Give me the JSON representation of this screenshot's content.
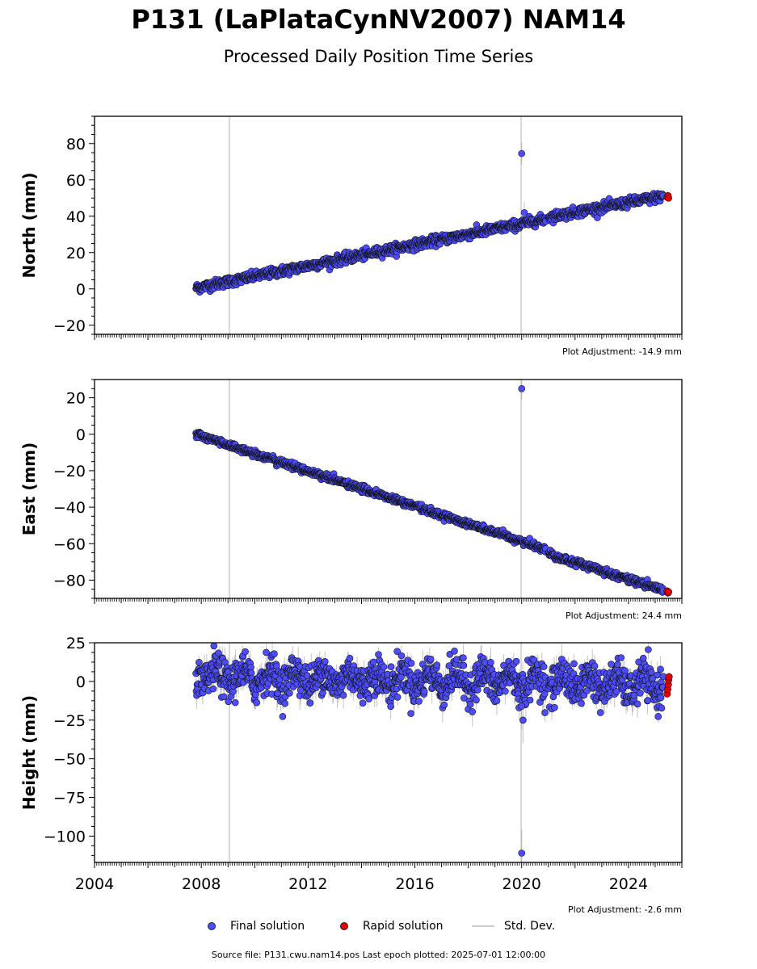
{
  "title": "P131 (LaPlataCynNV2007) NAM14",
  "subtitle": "Processed Daily Position Time Series",
  "footer": "Source file: P131.cwu.nam14.pos  Last epoch plotted: 2025-07-01 12:00:00",
  "legend": {
    "final": "Final solution",
    "rapid": "Rapid solution",
    "std": "Std. Dev."
  },
  "colors": {
    "final": "#4d4dff",
    "rapid": "#e00000",
    "std": "#cccccc",
    "edge": "#111111"
  },
  "chart_data": [
    {
      "type": "scatter",
      "ylabel": "North (mm)",
      "adjustment": "Plot Adjustment: -14.9 mm",
      "xlim": [
        2004,
        2026
      ],
      "ylim": [
        -25,
        95
      ],
      "yticks": [
        -20,
        0,
        20,
        40,
        60,
        80
      ],
      "xtick_labels_shown": false,
      "vlines": [
        2009.05,
        2019.98
      ],
      "series": [
        {
          "name": "Final solution",
          "segments": [
            {
              "x0": 2007.8,
              "x1": 2020.9,
              "y0": 0.5,
              "y1": 38.5
            },
            {
              "x0": 2021.0,
              "x1": 2025.3,
              "y0": 39.5,
              "y1": 51.0
            }
          ],
          "noise": 1.3,
          "outliers": [
            {
              "x": 2020.0,
              "y": 74.5
            },
            {
              "x": 2020.1,
              "y": 42.0
            }
          ]
        },
        {
          "name": "Rapid solution",
          "points": [
            {
              "x": 2025.45,
              "y": 50.5
            },
            {
              "x": 2025.48,
              "y": 51.3
            },
            {
              "x": 2025.5,
              "y": 50.0
            }
          ]
        }
      ]
    },
    {
      "type": "scatter",
      "ylabel": "East (mm)",
      "adjustment": "Plot Adjustment: 24.4 mm",
      "xlim": [
        2004,
        2026
      ],
      "ylim": [
        -90,
        30
      ],
      "yticks": [
        -80,
        -60,
        -40,
        -20,
        0,
        20
      ],
      "xtick_labels_shown": false,
      "vlines": [
        2009.05,
        2019.98
      ],
      "series": [
        {
          "name": "Final solution",
          "segments": [
            {
              "x0": 2007.8,
              "x1": 2020.9,
              "y0": 0.0,
              "y1": -63.0
            },
            {
              "x0": 2021.0,
              "x1": 2025.3,
              "y0": -65.5,
              "y1": -85.5
            }
          ],
          "noise": 0.9,
          "outliers": [
            {
              "x": 2020.0,
              "y": 25.0
            }
          ]
        },
        {
          "name": "Rapid solution",
          "points": [
            {
              "x": 2025.45,
              "y": -86.0
            },
            {
              "x": 2025.48,
              "y": -87.0
            },
            {
              "x": 2025.5,
              "y": -86.5
            }
          ]
        }
      ]
    },
    {
      "type": "scatter",
      "ylabel": "Height (mm)",
      "adjustment": "Plot Adjustment: -2.6 mm",
      "xlim": [
        2004,
        2026
      ],
      "ylim": [
        -117,
        25
      ],
      "yticks": [
        -100,
        -75,
        -50,
        -25,
        0,
        25
      ],
      "xticks": [
        2004,
        2008,
        2012,
        2016,
        2020,
        2024
      ],
      "xtick_labels_shown": true,
      "vlines": [
        2009.05,
        2019.98
      ],
      "series": [
        {
          "name": "Final solution",
          "segments": [
            {
              "x0": 2007.8,
              "x1": 2020.9,
              "y0": 3.0,
              "y1": 0.0
            },
            {
              "x0": 2021.0,
              "x1": 2025.3,
              "y0": 0.0,
              "y1": -3.0
            }
          ],
          "noise": 6.0,
          "seasonal_amplitude": 5.0,
          "outliers": [
            {
              "x": 2020.0,
              "y": -111.0
            },
            {
              "x": 2020.05,
              "y": -25.0
            },
            {
              "x": 2020.0,
              "y": -16.0
            }
          ]
        },
        {
          "name": "Rapid solution",
          "points": [
            {
              "x": 2025.45,
              "y": -8.0
            },
            {
              "x": 2025.47,
              "y": -5.0
            },
            {
              "x": 2025.49,
              "y": -2.0
            },
            {
              "x": 2025.5,
              "y": 1.0
            },
            {
              "x": 2025.52,
              "y": 3.0
            }
          ]
        }
      ]
    }
  ]
}
